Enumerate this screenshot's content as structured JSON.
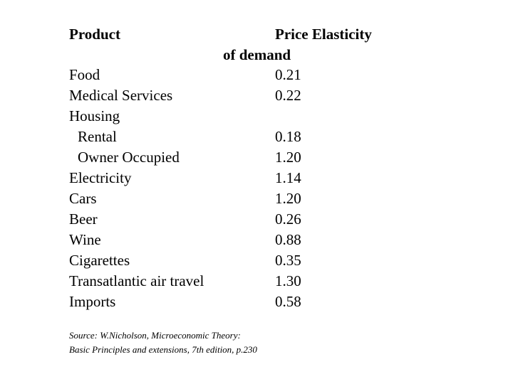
{
  "table": {
    "header": {
      "product": "Product",
      "elasticity_line1": "Price Elasticity",
      "elasticity_line2": "of demand"
    },
    "rows": [
      {
        "product": "Food",
        "value": "0.21",
        "indent": false
      },
      {
        "product": "Medical Services",
        "value": "0.22",
        "indent": false
      },
      {
        "product": "Housing",
        "value": "",
        "indent": false
      },
      {
        "product": "Rental",
        "value": "0.18",
        "indent": true
      },
      {
        "product": "Owner Occupied",
        "value": "1.20",
        "indent": true
      },
      {
        "product": "Electricity",
        "value": "1.14",
        "indent": false
      },
      {
        "product": "Cars",
        "value": "1.20",
        "indent": false
      },
      {
        "product": "Beer",
        "value": "0.26",
        "indent": false
      },
      {
        "product": "Wine",
        "value": "0.88",
        "indent": false
      },
      {
        "product": "Cigarettes",
        "value": "0.35",
        "indent": false
      },
      {
        "product": "Transatlantic air travel",
        "value": "1.30",
        "indent": false
      },
      {
        "product": "Imports",
        "value": "0.58",
        "indent": false
      }
    ]
  },
  "source": {
    "line1": "Source: W.Nicholson, Microeconomic Theory:",
    "line2": "Basic Principles and extensions, 7th edition, p.230"
  }
}
